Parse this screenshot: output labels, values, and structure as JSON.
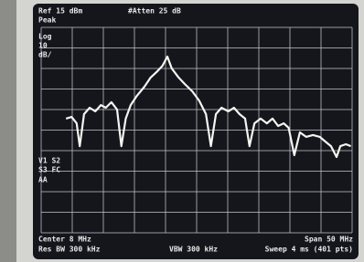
{
  "chart_data": {
    "type": "line",
    "annotations": [
      "Ref 15 dBm",
      "#Atten 25 dB",
      "Peak",
      "Log",
      "10",
      "dB/",
      "V1 S2",
      "S3 FC",
      "AA",
      "Center 8 MHz",
      "Span 50 MHz",
      "Res BW 300 kHz",
      "VBW 300 kHz",
      "Sweep 4 ms (401 pts)"
    ],
    "x": [
      -13.0,
      -12.1,
      -11.3,
      -10.8,
      -10.1,
      -9.2,
      -8.3,
      -7.4,
      -6.6,
      -5.7,
      -4.8,
      -4.1,
      -3.4,
      -2.6,
      -1.6,
      -0.4,
      0.6,
      1.7,
      2.5,
      3.3,
      4.0,
      5.1,
      6.1,
      7.3,
      8.4,
      9.5,
      10.3,
      11.1,
      12.0,
      13.1,
      14.0,
      14.9,
      15.8,
      16.5,
      17.3,
      18.3,
      19.3,
      20.2,
      21.1,
      22.0,
      22.8,
      23.7,
      24.6,
      25.6,
      26.7,
      27.8,
      28.7,
      29.6,
      30.5,
      31.1,
      32.0,
      32.8
    ],
    "values": [
      -29.4,
      -28.6,
      -31.7,
      -42.8,
      -27.2,
      -24.1,
      -25.9,
      -22.8,
      -24.1,
      -21.4,
      -25.0,
      -42.8,
      -29.4,
      -22.8,
      -18.3,
      -13.9,
      -9.4,
      -6.3,
      -3.7,
      0.8,
      -5.0,
      -9.4,
      -12.6,
      -16.1,
      -20.6,
      -27.2,
      -42.8,
      -27.2,
      -24.1,
      -25.9,
      -24.1,
      -27.2,
      -29.4,
      -42.8,
      -31.7,
      -29.4,
      -31.7,
      -29.4,
      -33.0,
      -31.7,
      -33.9,
      -47.2,
      -36.1,
      -38.3,
      -37.4,
      -38.3,
      -40.6,
      -42.8,
      -48.1,
      -42.8,
      -41.9,
      -42.8
    ],
    "color": "#f4f4f0",
    "xlim": [
      -17,
      33
    ],
    "ylim": [
      -85,
      15
    ]
  }
}
